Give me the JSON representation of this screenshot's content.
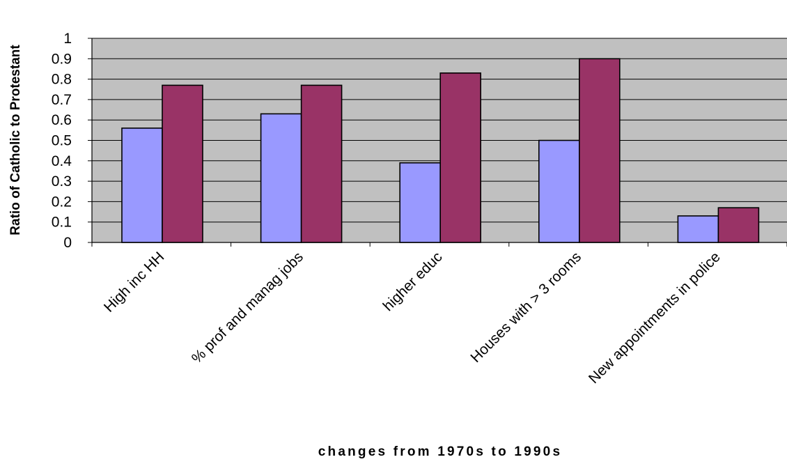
{
  "chart_data": {
    "type": "bar",
    "categories": [
      "High inc HH",
      "% prof and manag jobs",
      "higher educ",
      "Houses with > 3 rooms",
      "New appointments in police"
    ],
    "series": [
      {
        "values": [
          0.56,
          0.63,
          0.39,
          0.5,
          0.13
        ],
        "color": "#9999ff"
      },
      {
        "values": [
          0.77,
          0.77,
          0.83,
          0.9,
          0.17
        ],
        "color": "#993366"
      }
    ],
    "xlabel": "changes from 1970s to 1990s",
    "ylabel": "Ratio of Catholic to Protestant",
    "ylim": [
      0,
      1
    ],
    "yticks": [
      "0",
      "0.1",
      "0.2",
      "0.3",
      "0.4",
      "0.5",
      "0.6",
      "0.7",
      "0.8",
      "0.9",
      "1"
    ],
    "grid": true,
    "legend": "none",
    "plot_background": "#c0c0c0"
  }
}
